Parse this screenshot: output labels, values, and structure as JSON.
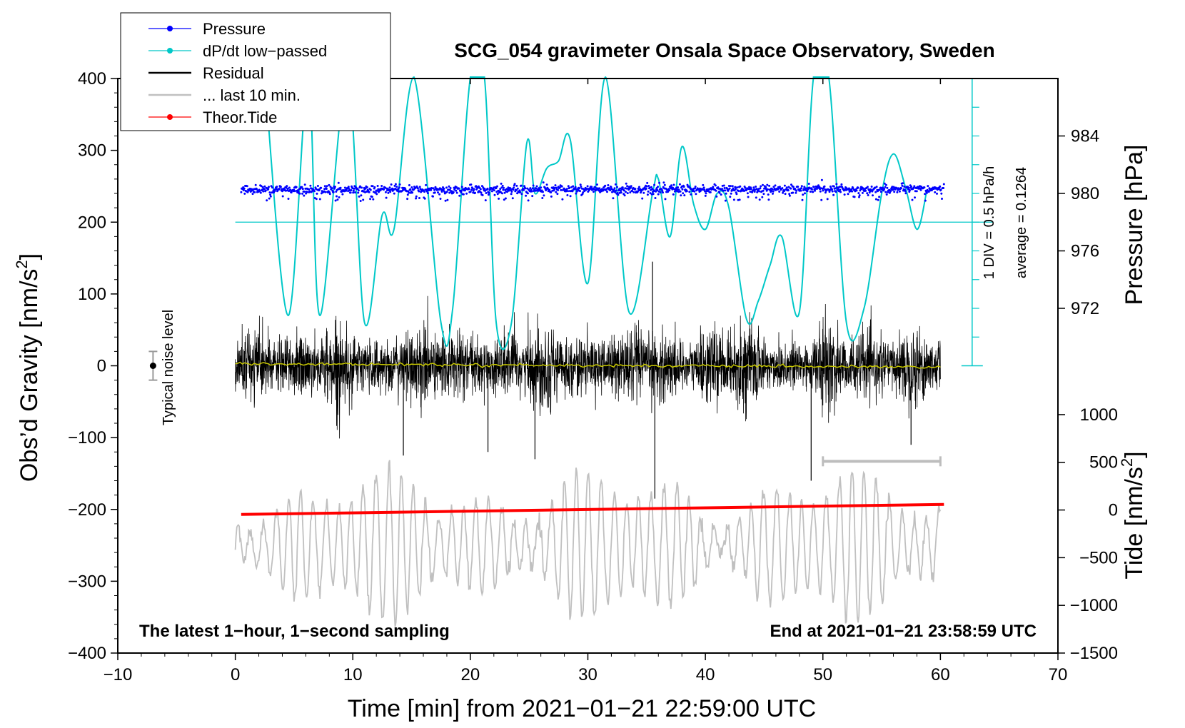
{
  "chart_data": {
    "type": "line",
    "title": "SCG_054 gravimeter Onsala Space Observatory, Sweden",
    "xlabel": "Time [min] from 2021−01−21 22:59:00 UTC",
    "ylabel_left": "Obs’d Gravity [nm/s",
    "ylabel_left_sup": "2",
    "ylabel_left_end": "]",
    "ylabel_right_pressure": "Pressure [hPa]",
    "ylabel_right_tide": "Tide [nm/s",
    "ylabel_right_tide_sup": "2",
    "ylabel_right_tide_end": "]",
    "xlim": [
      -10,
      70
    ],
    "ylim_left": [
      -400,
      400
    ],
    "x_ticks": [
      -10,
      0,
      10,
      20,
      30,
      40,
      50,
      60,
      70
    ],
    "x_tick_labels": [
      "−10",
      "0",
      "10",
      "20",
      "30",
      "40",
      "50",
      "60",
      "70"
    ],
    "y_ticks_left": [
      400,
      300,
      200,
      100,
      0,
      -100,
      -200,
      -300,
      -400
    ],
    "y_tick_labels_left": [
      "400",
      "300",
      "200",
      "100",
      "0",
      "−100",
      "−200",
      "−300",
      "−400"
    ],
    "pressure_ticks": [
      984,
      980,
      976,
      972
    ],
    "pressure_tick_labels": [
      "984",
      "980",
      "976",
      "972"
    ],
    "pressure_range_gravity_equiv": {
      "hpa_984": 320,
      "hpa_972": 80
    },
    "tide_ticks": [
      1000,
      500,
      0,
      -500,
      -1000,
      -1500
    ],
    "tide_tick_labels": [
      "1000",
      "500",
      "0",
      "−500",
      "−1000",
      "−1500"
    ],
    "tide_range_gravity_equiv": {
      "tide_1000": -68,
      "tide_-1500": -400
    },
    "legend": [
      {
        "label": "Pressure",
        "color": "#0000ff",
        "style": "line-dot"
      },
      {
        "label": "dP/dt low−passed",
        "color": "#00c8c8",
        "style": "line-dot"
      },
      {
        "label": "Residual",
        "color": "#000000",
        "style": "line"
      },
      {
        "label": "... last 10 min.",
        "color": "#c0c0c0",
        "style": "line"
      },
      {
        "label": "Theor.Tide",
        "color": "#ff0000",
        "style": "line-dot"
      }
    ],
    "series": [
      {
        "name": "dP/dt low−passed",
        "color": "#00c8c8",
        "x": [
          2.5,
          4.5,
          6.2,
          7.2,
          9.5,
          11.0,
          12.5,
          13.5,
          15.2,
          17.5,
          18.5,
          20.0,
          21.2,
          22.2,
          23.5,
          24.8,
          25.5,
          26.5,
          27.5,
          28.5,
          30.0,
          31.5,
          33.5,
          35.5,
          36.0,
          37.0,
          38.0,
          39.0,
          40.0,
          41.0,
          42.0,
          43.5,
          44.5,
          45.5,
          46.5,
          48.0,
          49.2,
          50.5,
          52.0,
          53.5,
          55.0,
          56.0,
          57.0,
          58.0,
          58.8
        ],
        "y": [
          410,
          70,
          410,
          70,
          410,
          60,
          210,
          190,
          410,
          60,
          80,
          410,
          410,
          60,
          60,
          310,
          240,
          275,
          285,
          315,
          115,
          410,
          75,
          240,
          260,
          180,
          305,
          225,
          190,
          240,
          220,
          65,
          90,
          140,
          180,
          75,
          410,
          410,
          60,
          80,
          240,
          295,
          250,
          190,
          240
        ]
      },
      {
        "name": "Pressure",
        "color": "#0000ff",
        "x": [
          0.5,
          60.3
        ],
        "y": [
          245,
          246
        ],
        "noise": 3
      },
      {
        "name": "Residual",
        "color": "#000000",
        "x": [
          0,
          60
        ],
        "baseline": 0,
        "typical_amplitude": 55,
        "spikes": [
          {
            "x": 14.3,
            "y": -125
          },
          {
            "x": 35.5,
            "y": 145
          },
          {
            "x": 35.7,
            "y": -185
          },
          {
            "x": 49.0,
            "y": -160
          },
          {
            "x": 21.5,
            "y": -120
          },
          {
            "x": 25.5,
            "y": -130
          },
          {
            "x": 57.5,
            "y": -110
          }
        ]
      },
      {
        "name": "Running mean",
        "color": "#c8c800",
        "x": [
          0,
          60
        ],
        "y": [
          3,
          -2
        ]
      },
      {
        "name": "... last 10 min.",
        "color": "#c0c0c0",
        "x": [
          0,
          60
        ],
        "center": -250,
        "amplitude_range": [
          20,
          110
        ]
      },
      {
        "name": "Theor.Tide",
        "color": "#ff0000",
        "x": [
          0.5,
          60.3
        ],
        "y": [
          -207,
          -193
        ]
      }
    ],
    "dpdt_zero_line": 200,
    "dpdt_scale_annotation": "1 DIV = 0.5 hPa/h",
    "dpdt_average_annotation": "average = 0.1264",
    "noise_label": "Typical noise level",
    "noise_marker": {
      "x": -7,
      "y": 0,
      "half_range": 20
    },
    "last10_bar": {
      "x_from": 50,
      "x_to": 60,
      "y": -133
    },
    "footer_left": "The latest 1−hour, 1−second sampling",
    "footer_right": "End at 2021−01−21 23:58:59 UTC"
  }
}
